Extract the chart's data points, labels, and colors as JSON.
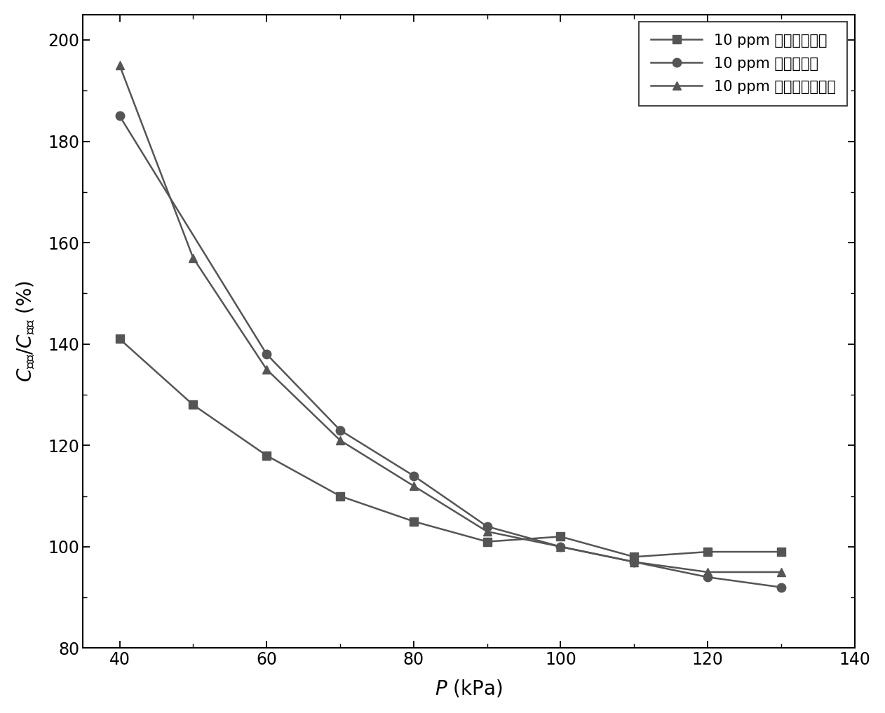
{
  "x": [
    40,
    50,
    60,
    70,
    80,
    90,
    100,
    110,
    120,
    130
  ],
  "series1_label": "10 ppm 线性比例补偿",
  "series1_y": [
    141,
    128,
    118,
    110,
    105,
    101,
    102,
    98,
    99,
    99
  ],
  "series1_marker": "s",
  "series2_label": "10 ppm 幂函数补偿",
  "series2_y": [
    185,
    null,
    138,
    123,
    114,
    104,
    100,
    97,
    94,
    92
  ],
  "series2_marker": "o",
  "series3_label": "10 ppm 多项式函数补偿",
  "series3_y": [
    195,
    157,
    135,
    121,
    112,
    103,
    100,
    97,
    95,
    95
  ],
  "series3_marker": "^",
  "line_color": "#555555",
  "xlim": [
    35,
    140
  ],
  "ylim": [
    80,
    205
  ],
  "xticks": [
    40,
    60,
    80,
    100,
    120,
    140
  ],
  "yticks": [
    80,
    100,
    120,
    140,
    160,
    180,
    200
  ],
  "bg_color": "#ffffff"
}
